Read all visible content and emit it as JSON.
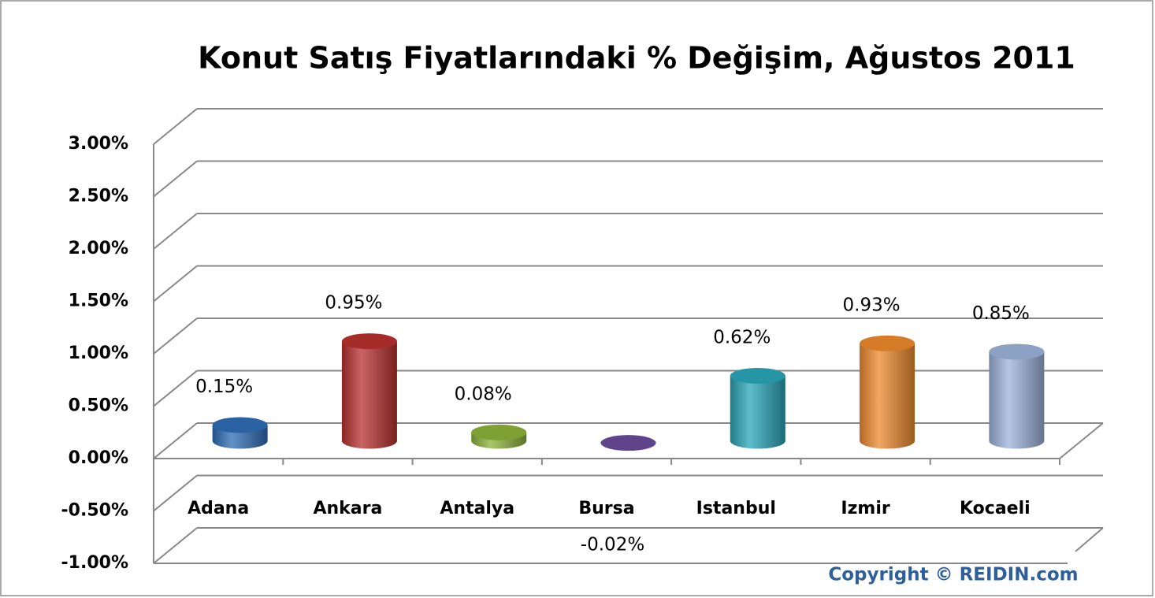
{
  "chart_data": {
    "type": "bar3d",
    "title": "Konut Satış Fiyatlarındaki % Değişim, Ağustos 2011",
    "categories": [
      "Adana",
      "Ankara",
      "Antalya",
      "Bursa",
      "Istanbul",
      "Izmir",
      "Kocaeli"
    ],
    "values": [
      0.15,
      0.95,
      0.08,
      -0.02,
      0.62,
      0.93,
      0.85
    ],
    "value_labels": [
      "0.15%",
      "0.95%",
      "0.08%",
      "-0.02%",
      "0.62%",
      "0.93%",
      "0.85%"
    ],
    "colors": [
      "#2f6db5",
      "#b8312f",
      "#8db33a",
      "#6a4b9a",
      "#2aa5b8",
      "#ee8a2e",
      "#9db3db"
    ],
    "ylim": [
      -1,
      3
    ],
    "yticks": [
      {
        "value": -1,
        "label": "-1.00%"
      },
      {
        "value": -0.5,
        "label": "-0.50%"
      },
      {
        "value": 0,
        "label": "0.00%"
      },
      {
        "value": 0.5,
        "label": "0.50%"
      },
      {
        "value": 1,
        "label": "1.00%"
      },
      {
        "value": 1.5,
        "label": "1.50%"
      },
      {
        "value": 2,
        "label": "2.00%"
      },
      {
        "value": 2.5,
        "label": "2.50%"
      },
      {
        "value": 3,
        "label": "3.00%"
      }
    ],
    "grid": true,
    "annotation": "Copyright © REIDIN.com"
  }
}
